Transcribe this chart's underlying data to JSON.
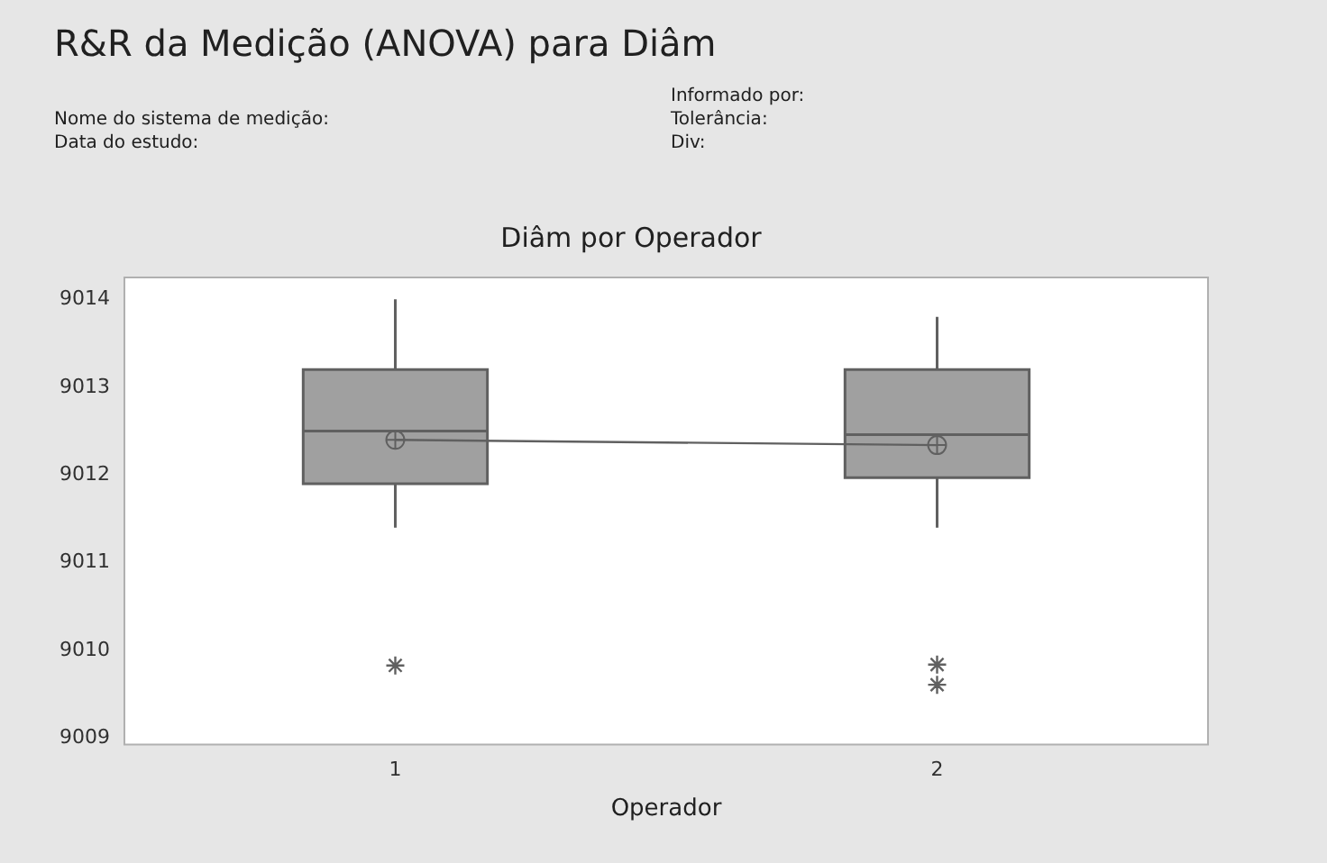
{
  "chart_data": {
    "type": "box",
    "title": "R&R da Medição (ANOVA) para Diâm",
    "subtitle": "Diâm por Operador",
    "xlabel": "Operador",
    "annotations": [
      "Informado por:",
      "Nome do sistema de medição:",
      "Tolerância:",
      "Data do estudo:",
      "Div:"
    ],
    "categories": [
      "1",
      "2"
    ],
    "series": [
      {
        "color": "#a0a0a0",
        "boxes": [
          {
            "low": 9011.4,
            "q1": 9011.9,
            "median": 9012.5,
            "q3": 9013.2,
            "high": 9014.0,
            "mean": 9012.4,
            "outliers": [
              9009.83
            ]
          },
          {
            "low": 9011.4,
            "q1": 9011.97,
            "median": 9012.46,
            "q3": 9013.2,
            "high": 9013.8,
            "mean": 9012.34,
            "outliers": [
              9009.84,
              9009.61
            ]
          }
        ]
      },
      {
        "type": "line",
        "color": "#606060",
        "values": [
          9012.4,
          9012.34
        ]
      }
    ],
    "ylim": [
      9008.93,
      9014.25
    ],
    "yticks": [
      9009,
      9010,
      9011,
      9012,
      9013,
      9014
    ],
    "grid": false,
    "legend": false
  }
}
